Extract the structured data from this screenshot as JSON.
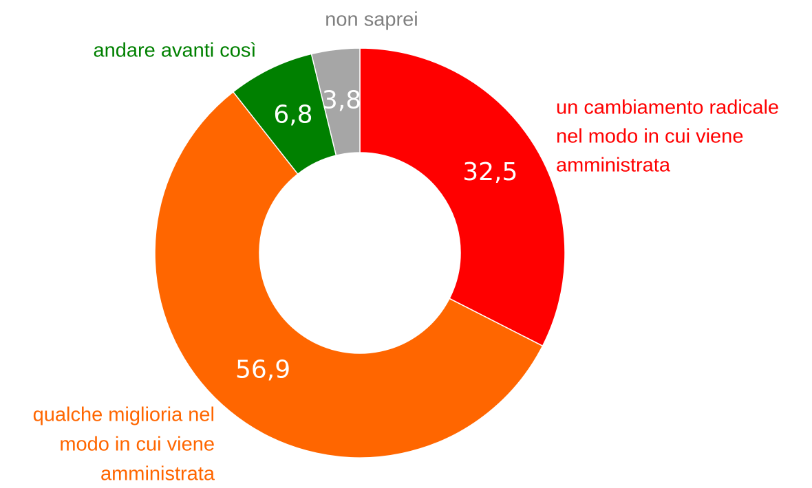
{
  "chart_data": {
    "type": "donut",
    "categories": [
      [
        "un cambiamento radicale",
        "nel modo in cui viene",
        "amministrata"
      ],
      [
        "qualche miglioria nel",
        "modo in cui viene",
        "amministrata"
      ],
      [
        "andare avanti così"
      ],
      [
        "non saprei"
      ]
    ],
    "values": [
      32.5,
      56.9,
      6.8,
      3.8
    ],
    "value_labels": [
      "32,5",
      "56,9",
      "6,8",
      "3,8"
    ],
    "colors": [
      "#ff0000",
      "#ff6600",
      "#008000",
      "#a6a6a6"
    ],
    "label_colors": [
      "#ff0000",
      "#ff6600",
      "#008000",
      "#808080"
    ]
  }
}
